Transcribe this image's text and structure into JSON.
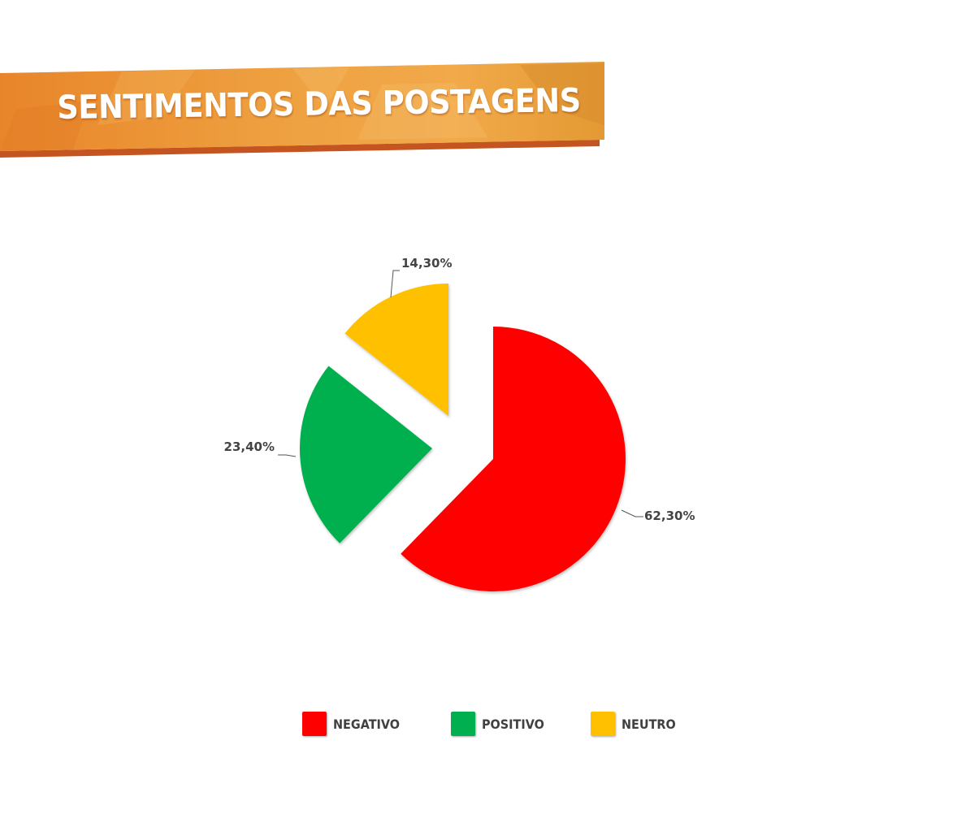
{
  "banner": {
    "title": "SENTIMENTOS DAS POSTAGENS",
    "colors": {
      "light": "#f0a33a",
      "mid": "#e8852a",
      "dark": "#c85a1e"
    }
  },
  "chart_data": {
    "type": "pie",
    "title": "SENTIMENTOS DAS POSTAGENS",
    "exploded": true,
    "legend_position": "bottom",
    "slices": [
      {
        "name": "NEGATIVO",
        "value": 62.3,
        "label": "62,30%",
        "color": "#ff0000"
      },
      {
        "name": "POSITIVO",
        "value": 23.4,
        "label": "23,40%",
        "color": "#00b050"
      },
      {
        "name": "NEUTRO",
        "value": 14.3,
        "label": "14,30%",
        "color": "#ffc000"
      }
    ]
  }
}
